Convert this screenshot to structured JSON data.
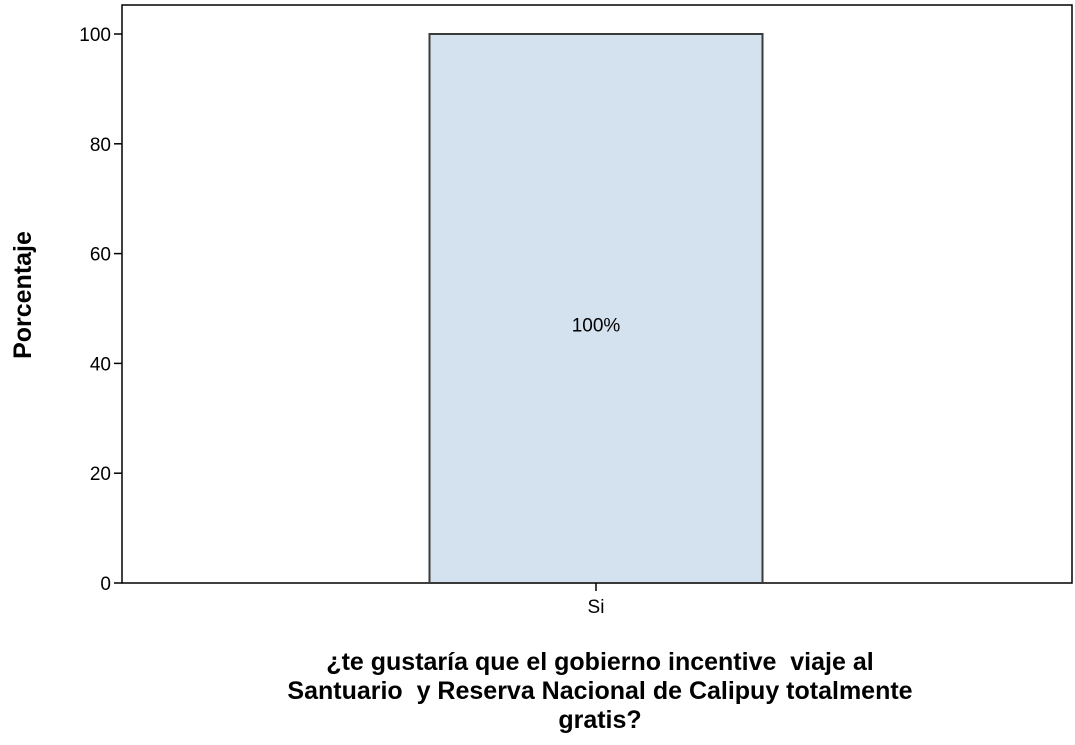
{
  "chart_data": {
    "type": "bar",
    "categories": [
      "Si"
    ],
    "values": [
      100
    ],
    "data_labels": [
      "100%"
    ],
    "ylabel": "Porcentaje",
    "xlabel_lines": [
      "¿te gustaría que el gobierno incentive  viaje al",
      "Santuario  y Reserva Nacional de Calipuy totalmente",
      "gratis?"
    ],
    "ylim": [
      0,
      105
    ],
    "yticks": [
      0,
      20,
      40,
      60,
      80,
      100
    ],
    "grid": false,
    "legend": "none",
    "colors": {
      "bar_fill": "#d4e1ef",
      "bar_stroke": "#3a3a3a",
      "frame": "#000000"
    }
  }
}
